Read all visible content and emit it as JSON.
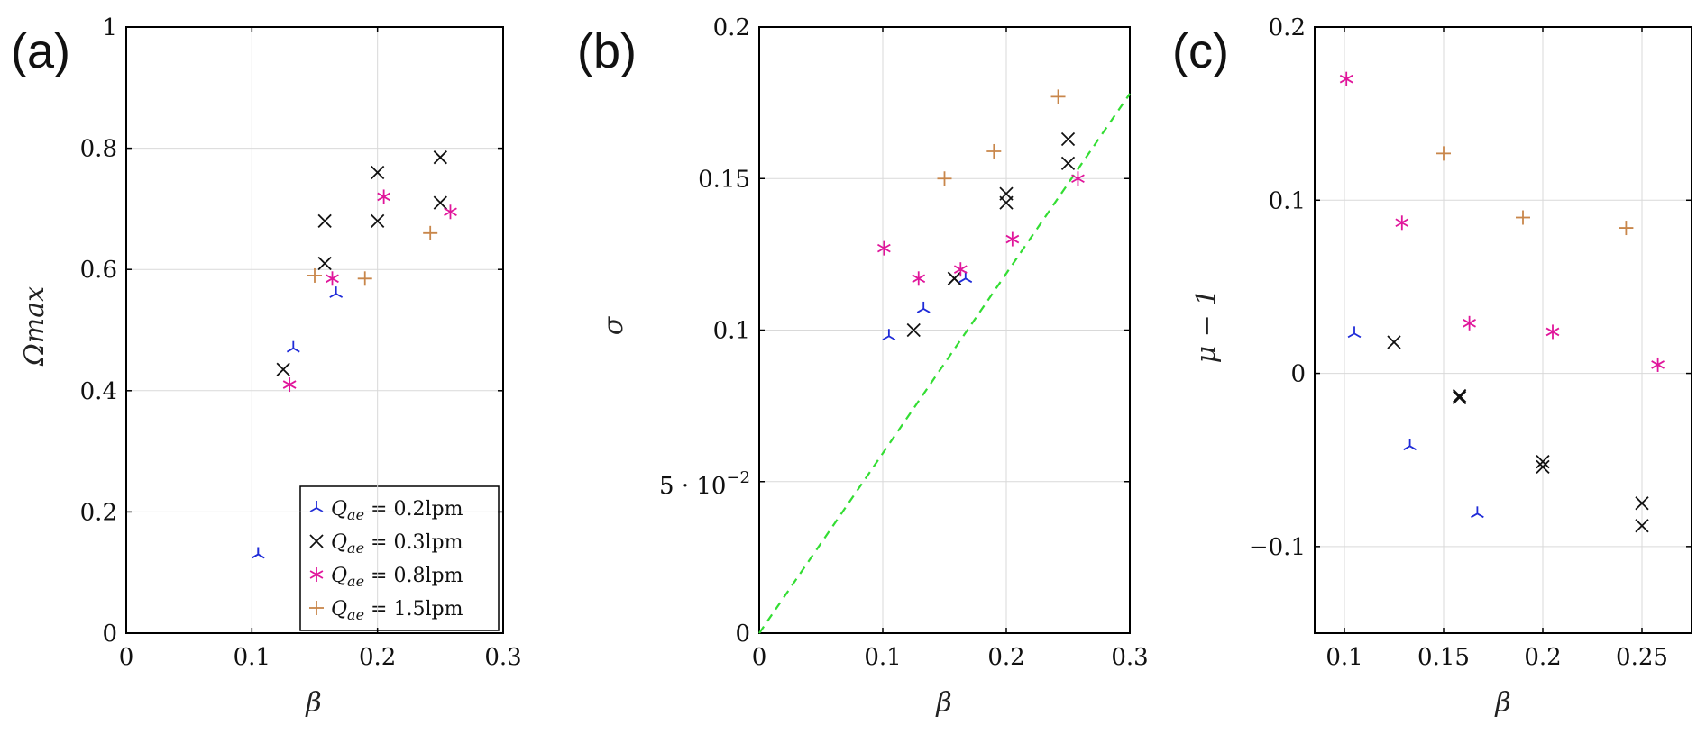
{
  "colors": {
    "s02": "#1f2bd8",
    "s03": "#111111",
    "s08": "#e0169b",
    "s15": "#c8864a",
    "ref_line": "#33dd33"
  },
  "chart_data": [
    {
      "type": "scatter",
      "panel_label": "(a)",
      "xlabel": "β",
      "ylabel": "Ωmax",
      "xlim": [
        0,
        0.3
      ],
      "ylim": [
        0,
        1
      ],
      "xticks": [
        0,
        0.1,
        0.2,
        0.3
      ],
      "xtick_labels": [
        "0",
        "0.1",
        "0.2",
        "0.3"
      ],
      "yticks": [
        0,
        0.2,
        0.4,
        0.6,
        0.8,
        1
      ],
      "ytick_labels": [
        "0",
        "0.2",
        "0.4",
        "0.6",
        "0.8",
        "1"
      ],
      "grid": true,
      "legend_position": "bottom-right",
      "legend": [
        {
          "series": "s02",
          "label_math": "Qae",
          "label_rest": " = 0.2lpm"
        },
        {
          "series": "s03",
          "label_math": "Qae",
          "label_rest": " = 0.3lpm"
        },
        {
          "series": "s08",
          "label_math": "Qae",
          "label_rest": " = 0.8lpm"
        },
        {
          "series": "s15",
          "label_math": "Qae",
          "label_rest": " = 1.5lpm"
        }
      ],
      "series": [
        {
          "id": "s02",
          "marker": "tri",
          "points": [
            [
              0.105,
              0.13
            ],
            [
              0.133,
              0.47
            ],
            [
              0.167,
              0.56
            ],
            [
              0.105,
              0.13
            ]
          ]
        },
        {
          "id": "s03",
          "marker": "x",
          "points": [
            [
              0.125,
              0.435
            ],
            [
              0.158,
              0.61
            ],
            [
              0.158,
              0.68
            ],
            [
              0.2,
              0.68
            ],
            [
              0.2,
              0.76
            ],
            [
              0.25,
              0.71
            ],
            [
              0.25,
              0.785
            ]
          ]
        },
        {
          "id": "s08",
          "marker": "star",
          "points": [
            [
              0.13,
              0.41
            ],
            [
              0.164,
              0.585
            ],
            [
              0.205,
              0.72
            ],
            [
              0.258,
              0.695
            ]
          ]
        },
        {
          "id": "s15",
          "marker": "plus",
          "points": [
            [
              0.15,
              0.59
            ],
            [
              0.19,
              0.585
            ],
            [
              0.242,
              0.66
            ]
          ]
        }
      ]
    },
    {
      "type": "scatter",
      "panel_label": "(b)",
      "xlabel": "β",
      "ylabel": "σ",
      "xlim": [
        0,
        0.3
      ],
      "ylim": [
        0,
        0.2
      ],
      "xticks": [
        0,
        0.1,
        0.2,
        0.3
      ],
      "xtick_labels": [
        "0",
        "0.1",
        "0.2",
        "0.3"
      ],
      "yticks": [
        0,
        0.05,
        0.1,
        0.15,
        0.2
      ],
      "ytick_labels": [
        "0",
        "5 · 10",
        "0.1",
        "0.15",
        "0.2"
      ],
      "ytick_exponent": "−2",
      "grid": true,
      "reference_line": {
        "from": [
          0,
          0
        ],
        "to": [
          0.3,
          0.178
        ],
        "style": "dashed"
      },
      "series": [
        {
          "id": "s02",
          "marker": "tri",
          "points": [
            [
              0.105,
              0.098
            ],
            [
              0.133,
              0.107
            ],
            [
              0.167,
              0.117
            ]
          ]
        },
        {
          "id": "s03",
          "marker": "x",
          "points": [
            [
              0.125,
              0.1
            ],
            [
              0.158,
              0.117
            ],
            [
              0.158,
              0.117
            ],
            [
              0.2,
              0.142
            ],
            [
              0.2,
              0.145
            ],
            [
              0.25,
              0.155
            ],
            [
              0.25,
              0.163
            ]
          ]
        },
        {
          "id": "s08",
          "marker": "star",
          "points": [
            [
              0.101,
              0.127
            ],
            [
              0.129,
              0.117
            ],
            [
              0.163,
              0.12
            ],
            [
              0.205,
              0.13
            ],
            [
              0.258,
              0.15
            ]
          ]
        },
        {
          "id": "s15",
          "marker": "plus",
          "points": [
            [
              0.15,
              0.15
            ],
            [
              0.19,
              0.159
            ],
            [
              0.242,
              0.177
            ]
          ]
        }
      ]
    },
    {
      "type": "scatter",
      "panel_label": "(c)",
      "xlabel": "β",
      "ylabel": "μ − 1",
      "xlim": [
        0.085,
        0.275
      ],
      "ylim": [
        -0.15,
        0.2
      ],
      "xticks": [
        0.1,
        0.15,
        0.2,
        0.25
      ],
      "xtick_labels": [
        "0.1",
        "0.15",
        "0.2",
        "0.25"
      ],
      "yticks": [
        -0.1,
        0,
        0.1,
        0.2
      ],
      "ytick_labels": [
        "−0.1",
        "0",
        "0.1",
        "0.2"
      ],
      "grid": true,
      "series": [
        {
          "id": "s02",
          "marker": "tri",
          "points": [
            [
              0.105,
              0.023
            ],
            [
              0.133,
              -0.042
            ],
            [
              0.167,
              -0.081
            ]
          ]
        },
        {
          "id": "s03",
          "marker": "x",
          "points": [
            [
              0.125,
              0.018
            ],
            [
              0.158,
              -0.013
            ],
            [
              0.158,
              -0.014
            ],
            [
              0.2,
              -0.051
            ],
            [
              0.2,
              -0.054
            ],
            [
              0.25,
              -0.075
            ],
            [
              0.25,
              -0.088
            ]
          ]
        },
        {
          "id": "s08",
          "marker": "star",
          "points": [
            [
              0.101,
              0.17
            ],
            [
              0.129,
              0.087
            ],
            [
              0.163,
              0.029
            ],
            [
              0.205,
              0.024
            ],
            [
              0.258,
              0.005
            ]
          ]
        },
        {
          "id": "s15",
          "marker": "plus",
          "points": [
            [
              0.15,
              0.127
            ],
            [
              0.19,
              0.09
            ],
            [
              0.242,
              0.084
            ]
          ]
        }
      ]
    }
  ]
}
